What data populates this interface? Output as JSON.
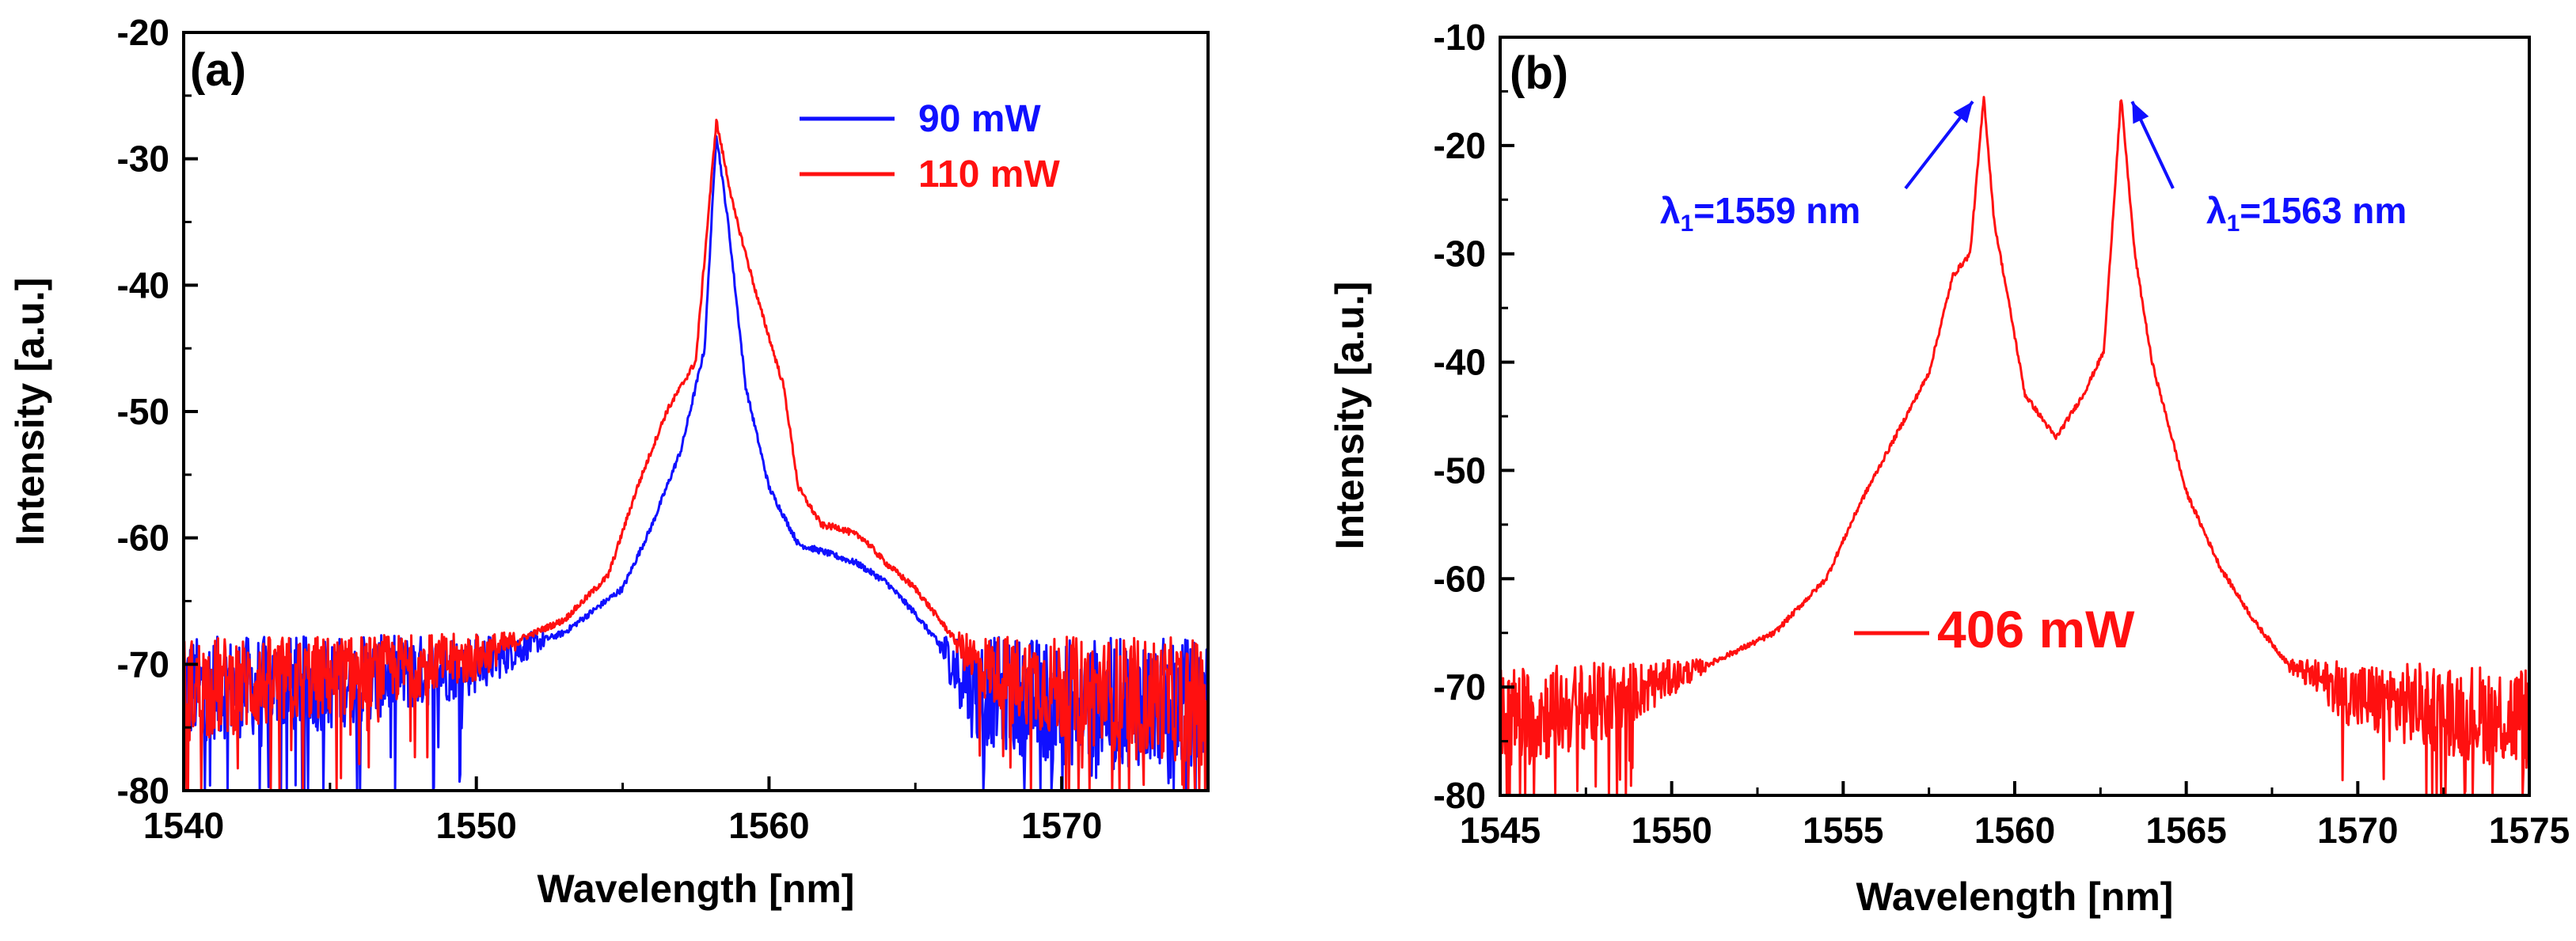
{
  "chart_data": [
    {
      "panel": "(a)",
      "type": "line",
      "xlabel": "Wavelength [nm]",
      "ylabel": "Intensity [a.u.]",
      "xlim": [
        1540,
        1575
      ],
      "ylim": [
        -80,
        -20
      ],
      "xticks": [
        1540,
        1550,
        1560,
        1570
      ],
      "yticks": [
        -80,
        -70,
        -60,
        -50,
        -40,
        -30,
        -20
      ],
      "legend_position": "top-right",
      "series": [
        {
          "name": "90 mW",
          "color": "#1010ff",
          "noise_floor": -72,
          "points": [
            [
              1540,
              -72
            ],
            [
              1545,
              -71.5
            ],
            [
              1550,
              -70
            ],
            [
              1553,
              -67.5
            ],
            [
              1555,
              -64
            ],
            [
              1556,
              -59
            ],
            [
              1557,
              -53
            ],
            [
              1557.8,
              -45
            ],
            [
              1558.2,
              -28
            ],
            [
              1558.6,
              -35
            ],
            [
              1559.2,
              -48
            ],
            [
              1560,
              -56
            ],
            [
              1561,
              -60.5
            ],
            [
              1562,
              -61.2
            ],
            [
              1563,
              -62
            ],
            [
              1564,
              -63.5
            ],
            [
              1565,
              -66
            ],
            [
              1566,
              -69
            ],
            [
              1567,
              -72
            ],
            [
              1570,
              -73
            ],
            [
              1575,
              -73
            ]
          ]
        },
        {
          "name": "110 mW",
          "color": "#ff1010",
          "noise_floor": -72,
          "points": [
            [
              1540,
              -72
            ],
            [
              1545,
              -71
            ],
            [
              1550,
              -69.5
            ],
            [
              1553,
              -66.5
            ],
            [
              1554.5,
              -63
            ],
            [
              1555.5,
              -56
            ],
            [
              1556.5,
              -50
            ],
            [
              1557.5,
              -46
            ],
            [
              1558.2,
              -27
            ],
            [
              1558.8,
              -34
            ],
            [
              1559.6,
              -41
            ],
            [
              1560.5,
              -48
            ],
            [
              1561,
              -56
            ],
            [
              1561.8,
              -59
            ],
            [
              1562.4,
              -59.2
            ],
            [
              1563.2,
              -60
            ],
            [
              1564,
              -62
            ],
            [
              1565,
              -64
            ],
            [
              1566,
              -67
            ],
            [
              1567,
              -70
            ],
            [
              1570,
              -72
            ],
            [
              1575,
              -73
            ]
          ]
        }
      ]
    },
    {
      "panel": "(b)",
      "type": "line",
      "xlabel": "Wavelength [nm]",
      "ylabel": "Intensity [a.u.]",
      "xlim": [
        1545,
        1575
      ],
      "ylim": [
        -80,
        -10
      ],
      "xticks": [
        1545,
        1550,
        1555,
        1560,
        1565,
        1570,
        1575
      ],
      "yticks": [
        -80,
        -70,
        -60,
        -50,
        -40,
        -30,
        -20,
        -10
      ],
      "legend_position": "bottom-center",
      "series": [
        {
          "name": "406 mW",
          "color": "#ff1010",
          "noise_floor": -72,
          "points": [
            [
              1545,
              -73
            ],
            [
              1548,
              -71.5
            ],
            [
              1551,
              -68
            ],
            [
              1553,
              -65
            ],
            [
              1554.5,
              -60
            ],
            [
              1555.5,
              -53
            ],
            [
              1556.5,
              -47
            ],
            [
              1557.5,
              -41
            ],
            [
              1558.2,
              -32
            ],
            [
              1558.7,
              -30
            ],
            [
              1559.1,
              -15.5
            ],
            [
              1559.4,
              -27
            ],
            [
              1559.8,
              -34
            ],
            [
              1560.3,
              -43
            ],
            [
              1561.2,
              -47
            ],
            [
              1562,
              -43
            ],
            [
              1562.6,
              -39
            ],
            [
              1563.1,
              -15.5
            ],
            [
              1563.5,
              -30
            ],
            [
              1564,
              -40
            ],
            [
              1565,
              -52
            ],
            [
              1566,
              -59
            ],
            [
              1567,
              -64
            ],
            [
              1568,
              -68
            ],
            [
              1570,
              -71
            ],
            [
              1575,
              -73
            ]
          ]
        }
      ],
      "annotations": [
        {
          "text": "λ1=1559 nm",
          "arrow_to": [
            1559.1,
            -15.5
          ]
        },
        {
          "text": "λ1=1563 nm",
          "arrow_to": [
            1563.1,
            -15.5
          ]
        }
      ]
    }
  ],
  "panels": {
    "a": {
      "label": "(a)",
      "xlabel": "Wavelength [nm]",
      "ylabel": "Intensity [a.u.]",
      "legend": [
        {
          "label": "90 mW"
        },
        {
          "label": "110 mW"
        }
      ]
    },
    "b": {
      "label": "(b)",
      "xlabel": "Wavelength [nm]",
      "ylabel": "Intensity [a.u.]",
      "legend": [
        {
          "label": "406 mW"
        }
      ],
      "annotations": [
        {
          "symbol": "λ",
          "sub": "1",
          "value": "=1559 nm"
        },
        {
          "symbol": "λ",
          "sub": "1",
          "value": "=1563 nm"
        }
      ]
    }
  }
}
